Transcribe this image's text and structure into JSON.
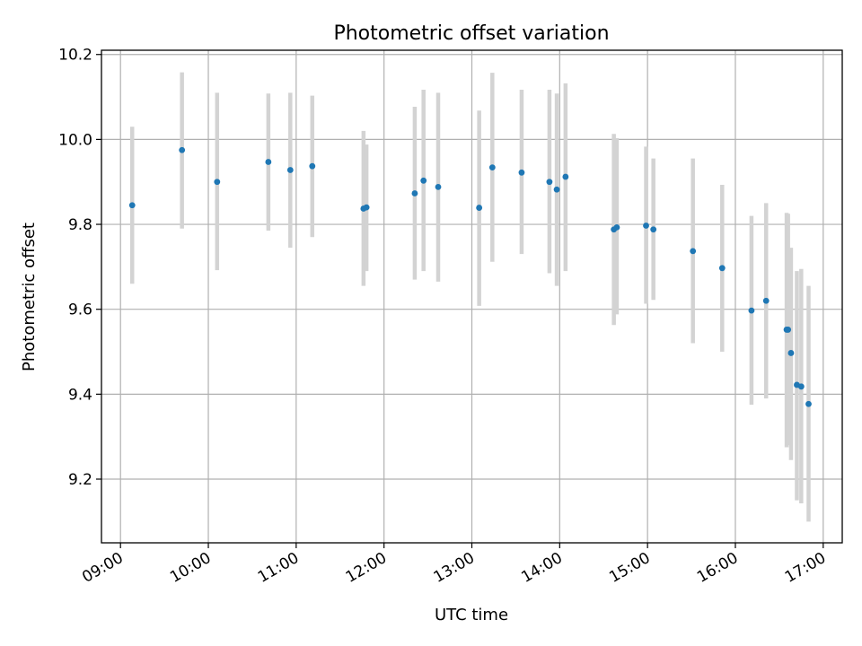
{
  "chart_data": {
    "type": "scatter",
    "title": "Photometric offset variation",
    "xlabel": "UTC time",
    "ylabel": "Photometric offset",
    "xlim": [
      "08:47",
      "17:13"
    ],
    "ylim": [
      9.05,
      10.21
    ],
    "xticks": [
      "09:00",
      "10:00",
      "11:00",
      "12:00",
      "13:00",
      "14:00",
      "15:00",
      "16:00",
      "17:00"
    ],
    "yticks": [
      "9.2",
      "9.4",
      "9.6",
      "9.8",
      "10.0",
      "10.2"
    ],
    "grid": true,
    "colors": {
      "point": "#1f77b4",
      "errorbar": "#d3d3d3"
    },
    "points": [
      {
        "x": "09:08",
        "y": 9.845,
        "lo": 9.66,
        "hi": 10.03
      },
      {
        "x": "09:42",
        "y": 9.975,
        "lo": 9.79,
        "hi": 10.158
      },
      {
        "x": "10:06",
        "y": 9.9,
        "lo": 9.692,
        "hi": 10.11
      },
      {
        "x": "10:41",
        "y": 9.947,
        "lo": 9.785,
        "hi": 10.108
      },
      {
        "x": "10:56",
        "y": 9.928,
        "lo": 9.745,
        "hi": 10.11
      },
      {
        "x": "11:11",
        "y": 9.937,
        "lo": 9.77,
        "hi": 10.103
      },
      {
        "x": "11:46",
        "y": 9.837,
        "lo": 9.655,
        "hi": 10.02
      },
      {
        "x": "11:48",
        "y": 9.84,
        "lo": 9.69,
        "hi": 9.988
      },
      {
        "x": "12:21",
        "y": 9.873,
        "lo": 9.67,
        "hi": 10.077
      },
      {
        "x": "12:27",
        "y": 9.903,
        "lo": 9.69,
        "hi": 10.117
      },
      {
        "x": "12:37",
        "y": 9.888,
        "lo": 9.665,
        "hi": 10.11
      },
      {
        "x": "13:05",
        "y": 9.839,
        "lo": 9.608,
        "hi": 10.068
      },
      {
        "x": "13:14",
        "y": 9.934,
        "lo": 9.712,
        "hi": 10.157
      },
      {
        "x": "13:34",
        "y": 9.922,
        "lo": 9.73,
        "hi": 10.117
      },
      {
        "x": "13:53",
        "y": 9.9,
        "lo": 9.685,
        "hi": 10.117
      },
      {
        "x": "13:58",
        "y": 9.882,
        "lo": 9.655,
        "hi": 10.108
      },
      {
        "x": "14:04",
        "y": 9.912,
        "lo": 9.69,
        "hi": 10.132
      },
      {
        "x": "14:37",
        "y": 9.788,
        "lo": 9.563,
        "hi": 10.013
      },
      {
        "x": "14:39",
        "y": 9.793,
        "lo": 9.588,
        "hi": 10.003
      },
      {
        "x": "14:59",
        "y": 9.797,
        "lo": 9.613,
        "hi": 9.983
      },
      {
        "x": "15:04",
        "y": 9.788,
        "lo": 9.622,
        "hi": 9.955
      },
      {
        "x": "15:31",
        "y": 9.737,
        "lo": 9.52,
        "hi": 9.955
      },
      {
        "x": "15:51",
        "y": 9.697,
        "lo": 9.5,
        "hi": 9.893
      },
      {
        "x": "16:11",
        "y": 9.597,
        "lo": 9.375,
        "hi": 9.82
      },
      {
        "x": "16:21",
        "y": 9.62,
        "lo": 9.39,
        "hi": 9.85
      },
      {
        "x": "16:35",
        "y": 9.552,
        "lo": 9.275,
        "hi": 9.827
      },
      {
        "x": "16:36",
        "y": 9.552,
        "lo": 9.28,
        "hi": 9.825
      },
      {
        "x": "16:38",
        "y": 9.497,
        "lo": 9.245,
        "hi": 9.745
      },
      {
        "x": "16:42",
        "y": 9.422,
        "lo": 9.15,
        "hi": 9.69
      },
      {
        "x": "16:45",
        "y": 9.418,
        "lo": 9.143,
        "hi": 9.695
      },
      {
        "x": "16:50",
        "y": 9.377,
        "lo": 9.1,
        "hi": 9.655
      }
    ]
  }
}
